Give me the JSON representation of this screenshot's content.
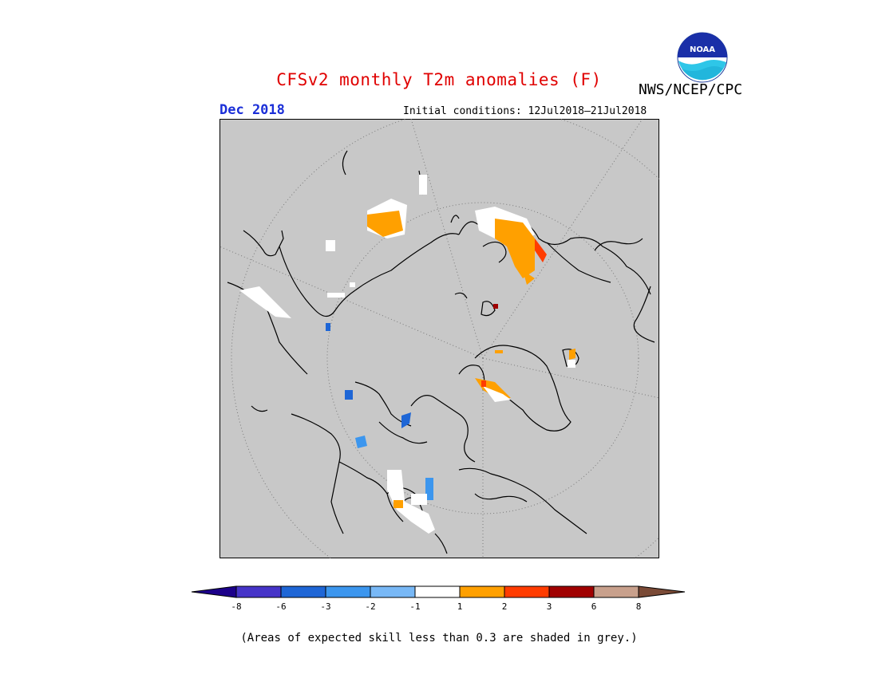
{
  "header": {
    "title": "CFSv2 monthly T2m anomalies (F)",
    "agency": "NWS/NCEP/CPC",
    "logo_text": "NOAA",
    "month": "Dec 2018",
    "initial_conditions": "Initial conditions: 12Jul2018–21Jul2018"
  },
  "colors": {
    "title": "#e00000",
    "month": "#1b2fd8",
    "map_background": "#c8c8c8",
    "land_outline": "#000000",
    "grid": "#7a7a7a"
  },
  "colorbar": {
    "ticks": [
      "-8",
      "-6",
      "-3",
      "-2",
      "-1",
      "1",
      "2",
      "3",
      "6",
      "8"
    ],
    "colors": [
      "#1c008a",
      "#4634c8",
      "#1e66d6",
      "#3c96ee",
      "#78b8f6",
      "#ffffff",
      "#ffa000",
      "#ff3c00",
      "#a00000",
      "#c8a08c",
      "#7a4a36"
    ]
  },
  "footnote": "(Areas of expected skill less than 0.3 are shaded in grey.)"
}
